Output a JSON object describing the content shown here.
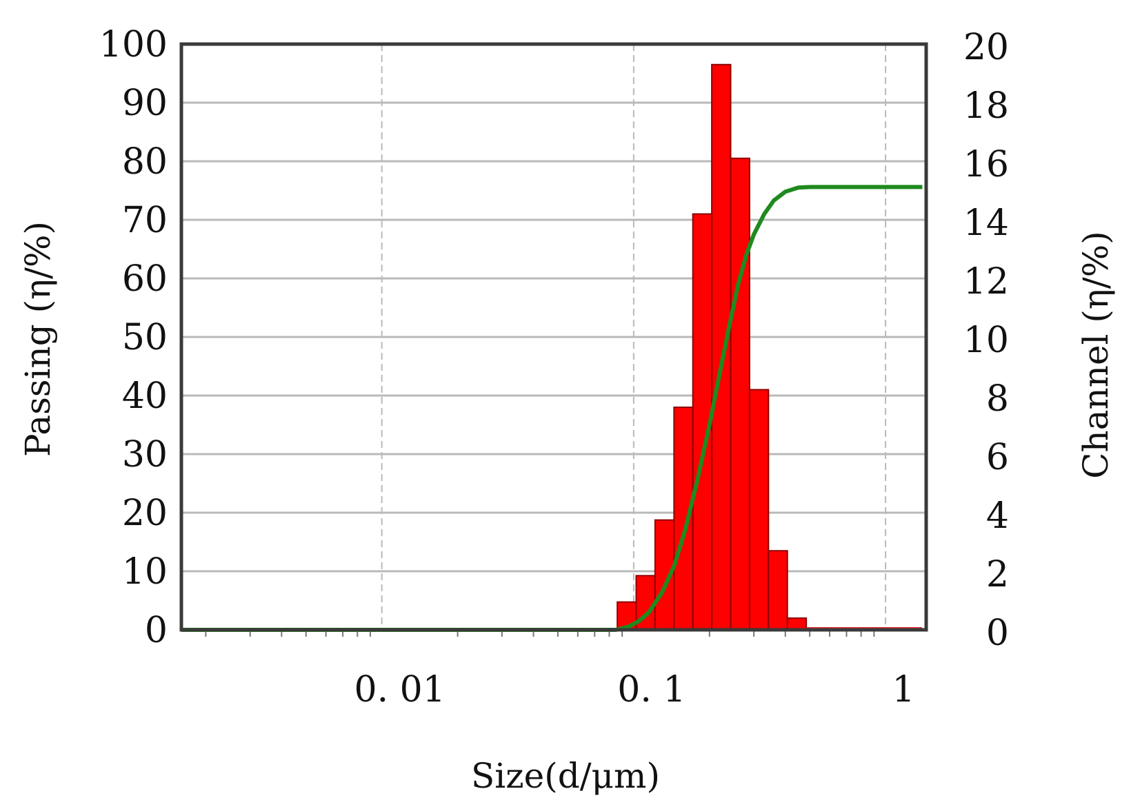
{
  "chart_data": {
    "type": "bar",
    "title": "",
    "xlabel": "Size(d/μm)",
    "ylabel_left": "Passing (η/%)",
    "ylabel_right": "Channel (η/%)",
    "x_scale": "log",
    "xlim": [
      0.0016,
      1.45
    ],
    "ylim_left": [
      0,
      100
    ],
    "ylim_right": [
      0,
      20
    ],
    "grid": true,
    "x_ticks": [
      {
        "value": 0.01,
        "label": "0. 01"
      },
      {
        "value": 0.1,
        "label": "0. 1"
      },
      {
        "value": 1,
        "label": "1"
      }
    ],
    "y_left_ticks": [
      "0",
      "10",
      "20",
      "30",
      "40",
      "50",
      "60",
      "70",
      "80",
      "90",
      "100"
    ],
    "y_right_ticks": [
      "0",
      "2",
      "4",
      "6",
      "8",
      "10",
      "12",
      "14",
      "16",
      "18",
      "20"
    ],
    "colors": {
      "bars": "#ff0000",
      "curve": "#1f8a1f",
      "baseline": "#e53030"
    },
    "series": [
      {
        "type": "bar",
        "axis": "right",
        "bins": [
          {
            "from": 0.0861,
            "to": 0.1023,
            "value": 0.95
          },
          {
            "from": 0.1023,
            "to": 0.1216,
            "value": 1.85
          },
          {
            "from": 0.1216,
            "to": 0.1446,
            "value": 3.75
          },
          {
            "from": 0.1446,
            "to": 0.1718,
            "value": 7.6
          },
          {
            "from": 0.1718,
            "to": 0.2042,
            "value": 14.2
          },
          {
            "from": 0.2042,
            "to": 0.2427,
            "value": 19.3
          },
          {
            "from": 0.2427,
            "to": 0.2885,
            "value": 16.1
          },
          {
            "from": 0.2885,
            "to": 0.3429,
            "value": 8.2
          },
          {
            "from": 0.3429,
            "to": 0.4076,
            "value": 2.7
          },
          {
            "from": 0.4076,
            "to": 0.4845,
            "value": 0.4
          }
        ]
      },
      {
        "type": "line",
        "axis": "left",
        "x": [
          0.0016,
          0.085,
          0.095,
          0.105,
          0.115,
          0.13,
          0.145,
          0.16,
          0.18,
          0.2,
          0.22,
          0.24,
          0.26,
          0.28,
          0.3,
          0.33,
          0.36,
          0.4,
          0.45,
          0.5,
          0.6,
          0.8,
          1.0,
          1.4
        ],
        "y": [
          0,
          0,
          0.5,
          1.5,
          3.0,
          6.5,
          11.0,
          17.0,
          26.0,
          35.0,
          44.0,
          52.0,
          59.0,
          64.0,
          67.5,
          71.0,
          73.3,
          74.8,
          75.5,
          75.6,
          75.6,
          75.6,
          75.6,
          75.6
        ]
      }
    ]
  }
}
